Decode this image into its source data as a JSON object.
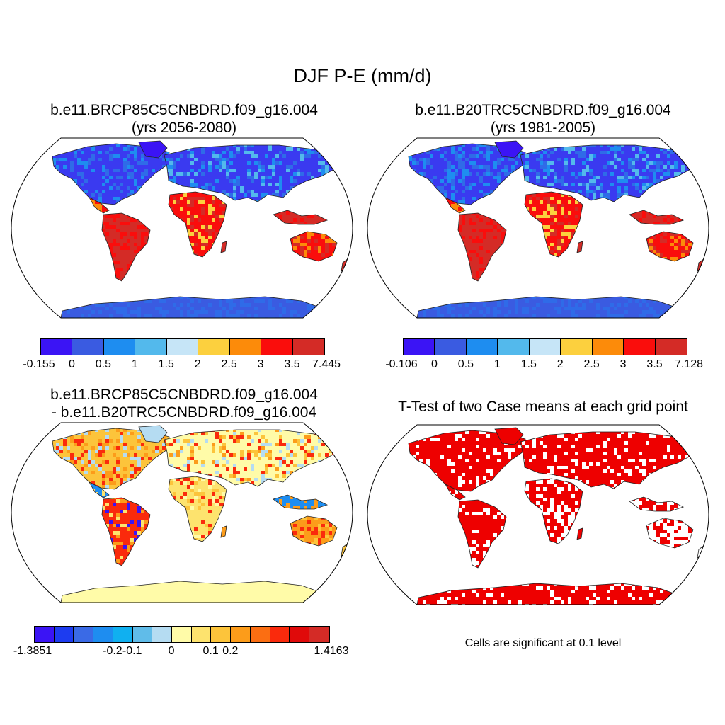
{
  "figure": {
    "title": "DJF P-E (mm/d)",
    "footnote": "Cells are significant at 0.1 level"
  },
  "panels": [
    {
      "id": "future",
      "title_line1": "b.e11.BRCP85C5CNBDRD.f09_g16.004",
      "title_line2": "(yrs 2056-2080)",
      "colorbar": {
        "colors": [
          "#3b14f5",
          "#3a5be1",
          "#1e8df0",
          "#53b9ec",
          "#c6e5f7",
          "#fcd03e",
          "#fc8b0a",
          "#fa0d0c",
          "#d42b26"
        ],
        "labels": [
          "-0.155",
          "0",
          "0.5",
          "1",
          "1.5",
          "2",
          "2.5",
          "3",
          "3.5",
          "7.445"
        ]
      }
    },
    {
      "id": "historical",
      "title_line1": "b.e11.B20TRC5CNBDRD.f09_g16.004",
      "title_line2": "(yrs 1981-2005)",
      "colorbar": {
        "colors": [
          "#3b14f5",
          "#3a5be1",
          "#1e8df0",
          "#53b9ec",
          "#c6e5f7",
          "#fcd03e",
          "#fc8b0a",
          "#fa0d0c",
          "#d42b26"
        ],
        "labels": [
          "-0.106",
          "0",
          "0.5",
          "1",
          "1.5",
          "2",
          "2.5",
          "3",
          "3.5",
          "7.128"
        ]
      }
    },
    {
      "id": "difference",
      "title_line1": "b.e11.BRCP85C5CNBDRD.f09_g16.004",
      "title_line2": "- b.e11.B20TRC5CNBDRD.f09_g16.004",
      "colorbar": {
        "colors": [
          "#3b14f5",
          "#1d3cf0",
          "#3a6ae6",
          "#1e8df0",
          "#10b0f0",
          "#60bce9",
          "#b5dcf2",
          "#fffba8",
          "#fde36e",
          "#fcc43b",
          "#fc9c1a",
          "#fb6e12",
          "#fa2a0c",
          "#e00a0a",
          "#d42b26"
        ],
        "labels": [
          "-1.3851",
          "-0.2",
          "-0.1",
          "0",
          "0.1",
          "0.2",
          "1.4163"
        ]
      }
    },
    {
      "id": "ttest",
      "title_line1": "T-Test of two Case means at each grid point",
      "title_line2": ""
    }
  ]
}
